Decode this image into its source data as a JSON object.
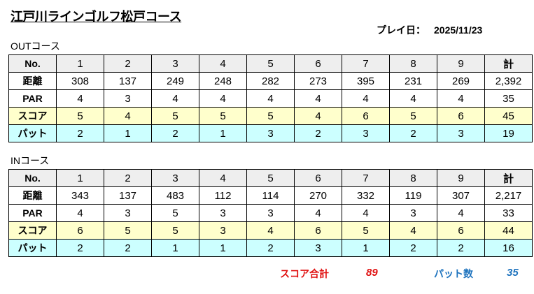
{
  "title": "江戸川ラインゴルフ松戸コース",
  "play_date": {
    "label": "プレイ日：",
    "value": "2025/11/23"
  },
  "row_labels": {
    "no": "No.",
    "distance": "距離",
    "par": "PAR",
    "score": "スコア",
    "putt": "パット"
  },
  "out": {
    "label": "OUTコース",
    "header": [
      "1",
      "2",
      "3",
      "4",
      "5",
      "6",
      "7",
      "8",
      "9",
      "計"
    ],
    "distance": [
      "308",
      "137",
      "249",
      "248",
      "282",
      "273",
      "395",
      "231",
      "269",
      "2,392"
    ],
    "par": [
      "4",
      "3",
      "4",
      "4",
      "4",
      "4",
      "4",
      "4",
      "4",
      "35"
    ],
    "score": [
      "5",
      "4",
      "5",
      "5",
      "5",
      "4",
      "6",
      "5",
      "6",
      "45"
    ],
    "putt": [
      "2",
      "1",
      "2",
      "1",
      "3",
      "2",
      "3",
      "2",
      "3",
      "19"
    ]
  },
  "in": {
    "label": "INコース",
    "header": [
      "1",
      "2",
      "3",
      "4",
      "5",
      "6",
      "7",
      "8",
      "9",
      "計"
    ],
    "distance": [
      "343",
      "137",
      "483",
      "112",
      "114",
      "270",
      "332",
      "119",
      "307",
      "2,217"
    ],
    "par": [
      "4",
      "3",
      "5",
      "3",
      "3",
      "4",
      "4",
      "3",
      "4",
      "33"
    ],
    "score": [
      "6",
      "5",
      "5",
      "3",
      "4",
      "6",
      "5",
      "4",
      "6",
      "44"
    ],
    "putt": [
      "2",
      "2",
      "1",
      "1",
      "2",
      "3",
      "1",
      "2",
      "2",
      "16"
    ]
  },
  "totals": {
    "score_label": "スコア合計",
    "score_value": "89",
    "putt_label": "パット数",
    "putt_value": "35"
  },
  "colors": {
    "header": "#eeeeee",
    "score_row": "#ffffcc",
    "putt_row": "#ccffff",
    "score_total": "#e01010",
    "putt_total": "#1e73be"
  }
}
